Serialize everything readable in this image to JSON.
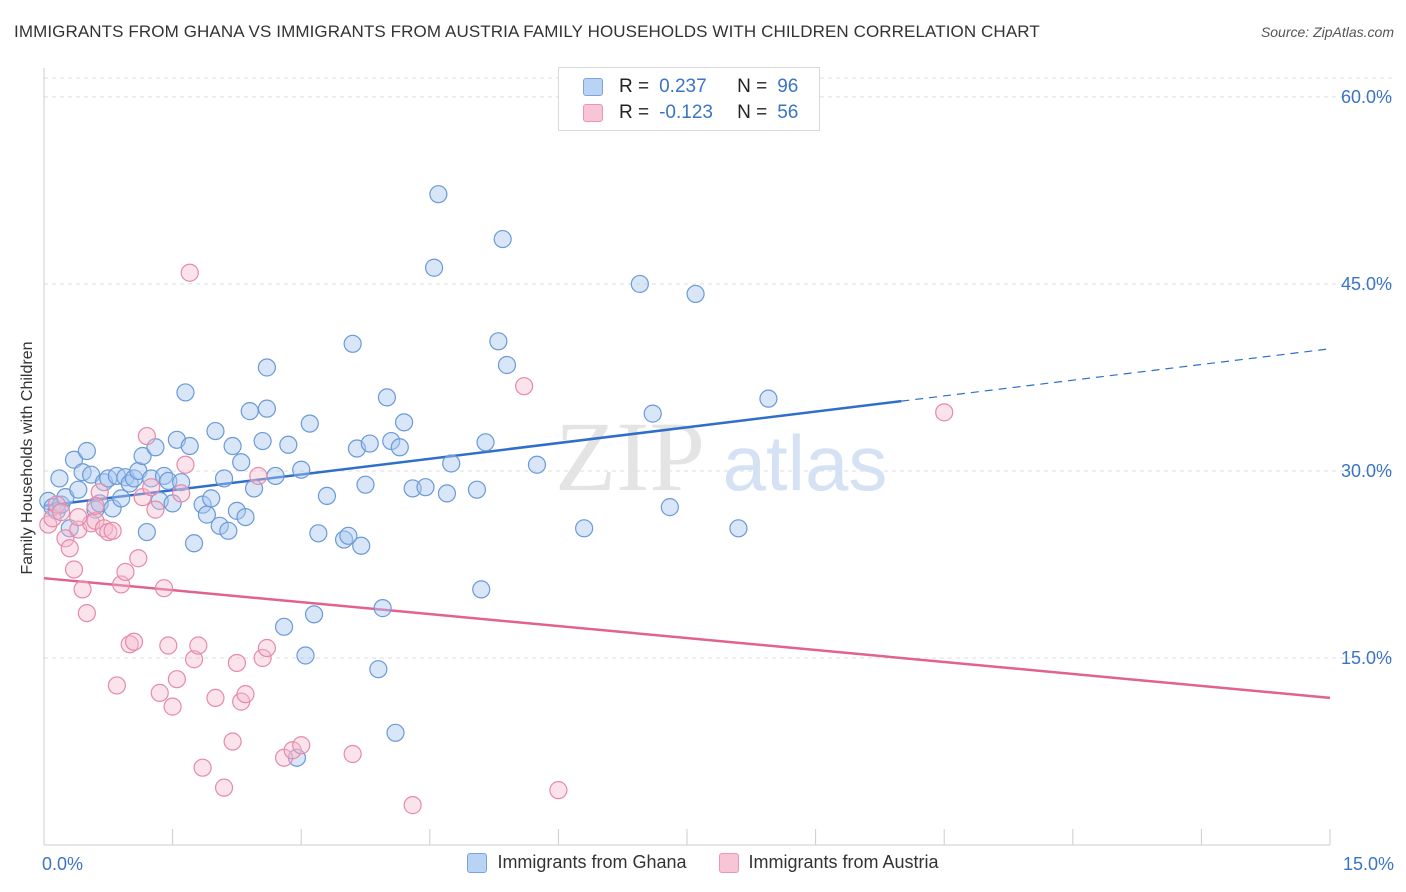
{
  "title": "IMMIGRANTS FROM GHANA VS IMMIGRANTS FROM AUSTRIA FAMILY HOUSEHOLDS WITH CHILDREN CORRELATION CHART",
  "source": "Source: ZipAtlas.com",
  "watermark": {
    "zip": "ZIP",
    "atlas": "atlas"
  },
  "legend": {
    "ghana": {
      "r_label": "R =",
      "r_value": "0.237",
      "n_label": "N =",
      "n_value": "96"
    },
    "austria": {
      "r_label": "R =",
      "r_value": "-0.123",
      "n_label": "N =",
      "n_value": "56"
    }
  },
  "colors": {
    "ghana": "#a8c8f0",
    "ghana_stroke": "#6a9ad8",
    "ghana_line": "#2f6fc8",
    "austria": "#f5b8cc",
    "austria_stroke": "#e68aaa",
    "austria_line": "#e0628e",
    "axis_text": "#3b74c4"
  },
  "chart_data": {
    "type": "scatter",
    "title": "IMMIGRANTS FROM GHANA VS IMMIGRANTS FROM AUSTRIA FAMILY HOUSEHOLDS WITH CHILDREN CORRELATION CHART",
    "xlabel": "",
    "ylabel": "Family Households with Children",
    "xlim": [
      0,
      15
    ],
    "ylim": [
      0,
      62
    ],
    "x_tick_labels": [
      "0.0%",
      "15.0%"
    ],
    "y_ticks": [
      15,
      30,
      45,
      60
    ],
    "y_tick_labels": [
      "15.0%",
      "30.0%",
      "45.0%",
      "60.0%"
    ],
    "grid": true,
    "legend_position": "top-center",
    "series": [
      {
        "name": "Immigrants from Ghana",
        "trend": {
          "x": [
            0,
            10
          ],
          "y": [
            27.2,
            35.6
          ],
          "dashed_to": [
            15,
            39.8
          ]
        },
        "points": [
          [
            0.05,
            27.6
          ],
          [
            0.1,
            27.1
          ],
          [
            0.15,
            26.8
          ],
          [
            0.18,
            29.4
          ],
          [
            0.2,
            27.3
          ],
          [
            0.25,
            27.9
          ],
          [
            0.3,
            25.4
          ],
          [
            0.35,
            30.9
          ],
          [
            0.4,
            28.5
          ],
          [
            0.45,
            29.9
          ],
          [
            0.5,
            31.6
          ],
          [
            0.55,
            29.7
          ],
          [
            0.6,
            26.9
          ],
          [
            0.65,
            27.4
          ],
          [
            0.7,
            29.1
          ],
          [
            0.75,
            29.4
          ],
          [
            0.8,
            27.0
          ],
          [
            0.85,
            29.6
          ],
          [
            0.9,
            27.8
          ],
          [
            0.95,
            29.5
          ],
          [
            1.0,
            29.0
          ],
          [
            1.05,
            29.4
          ],
          [
            1.1,
            30.0
          ],
          [
            1.15,
            31.2
          ],
          [
            1.2,
            25.1
          ],
          [
            1.25,
            29.4
          ],
          [
            1.3,
            31.9
          ],
          [
            1.35,
            27.6
          ],
          [
            1.4,
            29.6
          ],
          [
            1.45,
            29.2
          ],
          [
            1.5,
            27.4
          ],
          [
            1.55,
            32.5
          ],
          [
            1.6,
            29.1
          ],
          [
            1.65,
            36.3
          ],
          [
            1.7,
            32.0
          ],
          [
            1.75,
            24.2
          ],
          [
            1.85,
            27.3
          ],
          [
            1.9,
            26.5
          ],
          [
            1.95,
            27.8
          ],
          [
            2.0,
            33.2
          ],
          [
            2.05,
            25.6
          ],
          [
            2.1,
            29.4
          ],
          [
            2.15,
            25.2
          ],
          [
            2.2,
            32.0
          ],
          [
            2.25,
            26.8
          ],
          [
            2.3,
            30.7
          ],
          [
            2.35,
            26.3
          ],
          [
            2.4,
            34.8
          ],
          [
            2.45,
            28.6
          ],
          [
            2.55,
            32.4
          ],
          [
            2.6,
            35.0
          ],
          [
            2.6,
            38.3
          ],
          [
            2.7,
            29.6
          ],
          [
            2.8,
            17.5
          ],
          [
            2.85,
            32.1
          ],
          [
            2.95,
            7.0
          ],
          [
            3.0,
            30.1
          ],
          [
            3.05,
            15.2
          ],
          [
            3.1,
            33.8
          ],
          [
            3.15,
            18.5
          ],
          [
            3.2,
            25.0
          ],
          [
            3.3,
            28.0
          ],
          [
            3.5,
            24.5
          ],
          [
            3.55,
            24.8
          ],
          [
            3.6,
            40.2
          ],
          [
            3.65,
            31.8
          ],
          [
            3.7,
            24.0
          ],
          [
            3.75,
            28.9
          ],
          [
            3.8,
            32.2
          ],
          [
            3.9,
            14.1
          ],
          [
            3.95,
            19.0
          ],
          [
            4.0,
            35.9
          ],
          [
            4.05,
            32.4
          ],
          [
            4.1,
            9.0
          ],
          [
            4.15,
            31.9
          ],
          [
            4.2,
            33.9
          ],
          [
            4.3,
            28.6
          ],
          [
            4.45,
            28.7
          ],
          [
            4.55,
            46.3
          ],
          [
            4.6,
            52.2
          ],
          [
            4.75,
            30.6
          ],
          [
            4.7,
            28.2
          ],
          [
            5.05,
            28.5
          ],
          [
            5.1,
            20.5
          ],
          [
            5.15,
            32.3
          ],
          [
            5.3,
            40.4
          ],
          [
            5.35,
            48.6
          ],
          [
            5.4,
            38.5
          ],
          [
            5.75,
            30.5
          ],
          [
            6.3,
            25.4
          ],
          [
            6.95,
            45.0
          ],
          [
            7.1,
            34.6
          ],
          [
            7.3,
            27.1
          ],
          [
            7.6,
            44.2
          ],
          [
            8.1,
            25.4
          ],
          [
            8.45,
            35.8
          ]
        ]
      },
      {
        "name": "Immigrants from Austria",
        "trend": {
          "x": [
            0,
            15
          ],
          "y": [
            21.4,
            11.8
          ]
        },
        "points": [
          [
            0.05,
            25.7
          ],
          [
            0.1,
            26.2
          ],
          [
            0.15,
            27.3
          ],
          [
            0.2,
            26.7
          ],
          [
            0.25,
            24.6
          ],
          [
            0.3,
            23.8
          ],
          [
            0.35,
            22.1
          ],
          [
            0.4,
            25.3
          ],
          [
            0.45,
            20.5
          ],
          [
            0.5,
            18.6
          ],
          [
            0.55,
            25.8
          ],
          [
            0.6,
            26.0
          ],
          [
            0.65,
            28.3
          ],
          [
            0.7,
            25.4
          ],
          [
            0.75,
            25.1
          ],
          [
            0.8,
            25.2
          ],
          [
            0.85,
            12.8
          ],
          [
            0.9,
            20.9
          ],
          [
            0.95,
            21.9
          ],
          [
            1.0,
            16.1
          ],
          [
            1.05,
            16.3
          ],
          [
            1.1,
            23.0
          ],
          [
            1.15,
            27.9
          ],
          [
            1.2,
            32.8
          ],
          [
            1.25,
            28.7
          ],
          [
            1.3,
            26.9
          ],
          [
            1.35,
            12.2
          ],
          [
            1.4,
            20.6
          ],
          [
            1.45,
            16.0
          ],
          [
            1.5,
            11.1
          ],
          [
            1.55,
            13.3
          ],
          [
            1.6,
            28.2
          ],
          [
            1.65,
            30.5
          ],
          [
            1.7,
            45.9
          ],
          [
            1.75,
            14.9
          ],
          [
            1.8,
            16.0
          ],
          [
            1.85,
            6.2
          ],
          [
            2.0,
            11.8
          ],
          [
            2.1,
            4.6
          ],
          [
            2.2,
            8.3
          ],
          [
            2.25,
            14.6
          ],
          [
            2.3,
            11.5
          ],
          [
            2.35,
            12.1
          ],
          [
            2.5,
            29.6
          ],
          [
            2.55,
            15.0
          ],
          [
            2.6,
            15.8
          ],
          [
            2.8,
            7.0
          ],
          [
            2.9,
            7.6
          ],
          [
            3.0,
            8.0
          ],
          [
            3.6,
            7.3
          ],
          [
            4.3,
            3.2
          ],
          [
            5.6,
            36.8
          ],
          [
            6.0,
            4.4
          ],
          [
            10.5,
            34.7
          ],
          [
            0.4,
            26.3
          ],
          [
            0.6,
            27.2
          ]
        ]
      }
    ],
    "x_minor_ticks_count": 10
  },
  "bottom_legend": [
    "Immigrants from Ghana",
    "Immigrants from Austria"
  ]
}
